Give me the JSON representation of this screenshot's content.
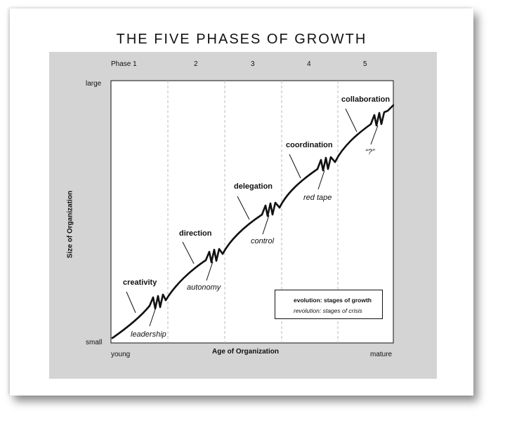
{
  "title": "THE FIVE PHASES OF GROWTH",
  "phases": [
    "Phase 1",
    "2",
    "3",
    "4",
    "5"
  ],
  "y_axis": {
    "label": "Size of Organization",
    "top": "large",
    "bottom": "small"
  },
  "x_axis": {
    "label": "Age of Organization",
    "left": "young",
    "right": "mature"
  },
  "stages": [
    {
      "label": "creativity",
      "crisis": "leadership"
    },
    {
      "label": "direction",
      "crisis": "autonomy"
    },
    {
      "label": "delegation",
      "crisis": "control"
    },
    {
      "label": "coordination",
      "crisis": "red tape"
    },
    {
      "label": "collaboration",
      "crisis": "“?”"
    }
  ],
  "legend": {
    "evolution": "evolution: stages of growth",
    "revolution": "revolution: stages of crisis"
  },
  "colors": {
    "panel": "#d4d4d4",
    "line": "#111111",
    "divider": "#bbbbbb"
  }
}
